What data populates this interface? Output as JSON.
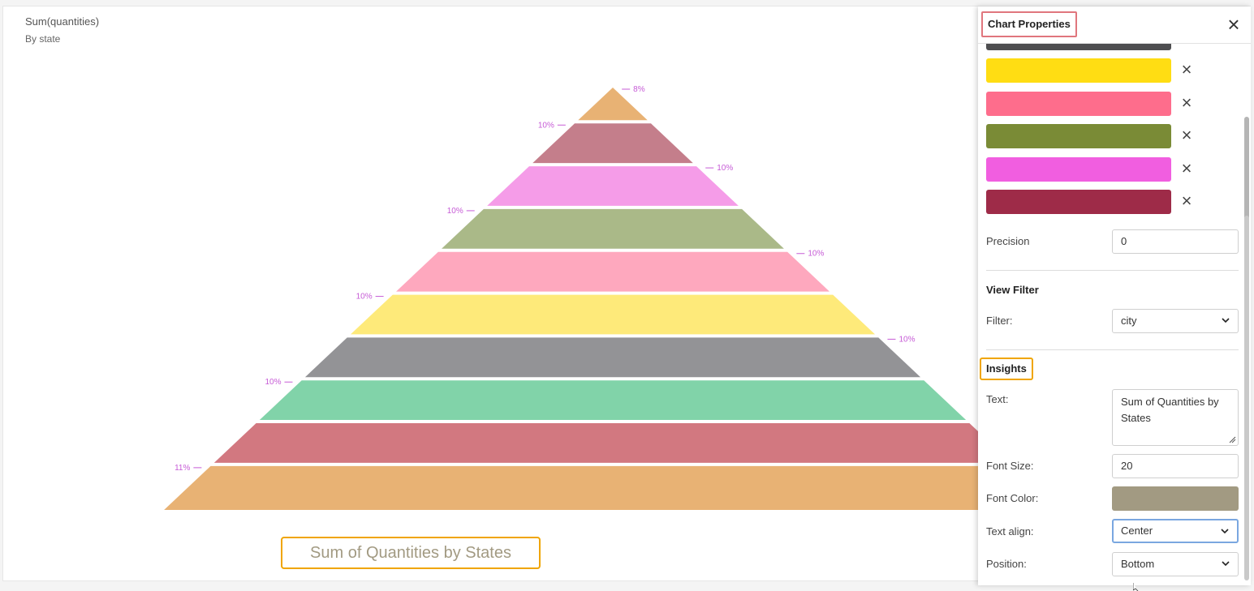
{
  "chart": {
    "title": "Sum(quantities)",
    "subtitle": "By state"
  },
  "chart_data": {
    "type": "pyramid",
    "values_percent": [
      8,
      10,
      10,
      10,
      10,
      10,
      10,
      10,
      10,
      11
    ],
    "labels": [
      "8%",
      "10%",
      "10%",
      "10%",
      "10%",
      "10%",
      "10%",
      "10%",
      "10%",
      "11%"
    ],
    "colors": [
      "#e8b274",
      "#c47e8b",
      "#f59ce8",
      "#aab988",
      "#fea8be",
      "#feea7a",
      "#939396",
      "#81d3a9",
      "#d27880",
      "#e8b274"
    ],
    "label_color": "#c65bd6"
  },
  "insight": {
    "text": "Sum of Quantities by States",
    "color": "#a29a82"
  },
  "panel": {
    "title": "Chart Properties",
    "close_icon": "×",
    "swatch_colors": [
      "#ffdd13",
      "#fe6d8c",
      "#7a8b36",
      "#f15ee0",
      "#9e2b48"
    ],
    "remove_icon": "×",
    "precision_label": "Precision",
    "precision_value": "0",
    "view_filter_title": "View Filter",
    "filter_label": "Filter:",
    "filter_value": "city",
    "insights_title": "Insights",
    "text_label": "Text:",
    "text_value": "Sum of Quantities by States",
    "font_size_label": "Font Size:",
    "font_size_value": "20",
    "font_color_label": "Font Color:",
    "font_color_value": "#a29a82",
    "text_align_label": "Text align:",
    "text_align_value": "Center",
    "position_label": "Position:",
    "position_value": "Bottom"
  }
}
